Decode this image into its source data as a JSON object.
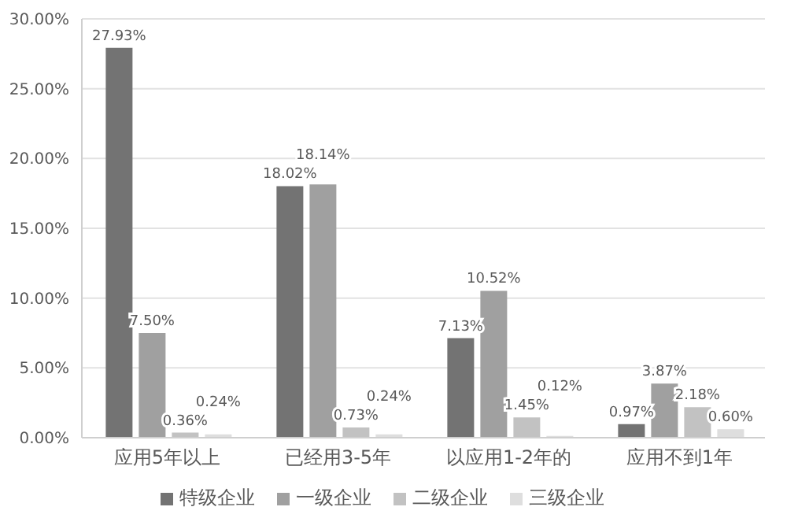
{
  "chart_data": {
    "type": "bar",
    "categories": [
      "应用5年以上",
      "已经用3-5年",
      "以应用1-2年的",
      "应用不到1年"
    ],
    "series": [
      {
        "name": "特级企业",
        "color": "#737373",
        "values": [
          27.93,
          18.02,
          7.13,
          0.97
        ],
        "value_labels": [
          "27.93%",
          "18.02%",
          "7.13%",
          "0.97%"
        ]
      },
      {
        "name": "一级企业",
        "color": "#a0a0a0",
        "values": [
          7.5,
          18.14,
          10.52,
          3.87
        ],
        "value_labels": [
          "7.50%",
          "18.14%",
          "10.52%",
          "3.87%"
        ]
      },
      {
        "name": "二级企业",
        "color": "#c2c2c2",
        "values": [
          0.36,
          0.73,
          1.45,
          2.18
        ],
        "value_labels": [
          "0.36%",
          "0.73%",
          "1.45%",
          "2.18%"
        ]
      },
      {
        "name": "三级企业",
        "color": "#dedede",
        "values": [
          0.24,
          0.24,
          0.12,
          0.6
        ],
        "value_labels": [
          "0.24%",
          "0.24%",
          "0.12%",
          "0.60%"
        ]
      }
    ],
    "ylim": [
      0,
      30
    ],
    "yticks": [
      {
        "value": 0,
        "label": "0.00%"
      },
      {
        "value": 5,
        "label": "5.00%"
      },
      {
        "value": 10,
        "label": "10.00%"
      },
      {
        "value": 15,
        "label": "15.00%"
      },
      {
        "value": 20,
        "label": "20.00%"
      },
      {
        "value": 25,
        "label": "25.00%"
      },
      {
        "value": 30,
        "label": "30.00%"
      }
    ],
    "grid": "y",
    "legend": "bottom"
  }
}
